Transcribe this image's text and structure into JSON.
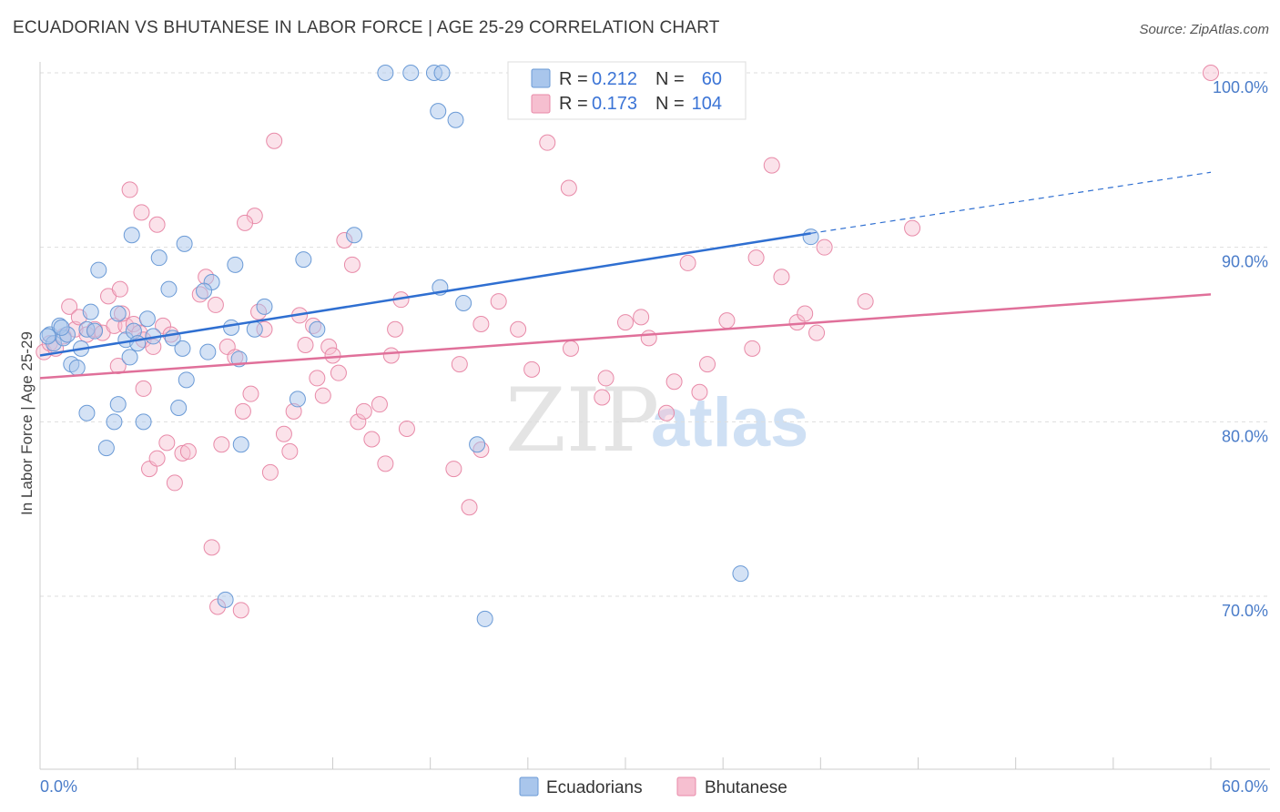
{
  "title": "ECUADORIAN VS BHUTANESE IN LABOR FORCE | AGE 25-29 CORRELATION CHART",
  "source": "Source: ZipAtlas.com",
  "watermark": {
    "part1": "ZIP",
    "part2": "atlas"
  },
  "colors": {
    "blue_fill": "#a9c6ec",
    "blue_stroke": "#6a9ad6",
    "blue_line": "#2f6fd1",
    "pink_fill": "#f6bfd0",
    "pink_stroke": "#e88aa8",
    "pink_line": "#e0709a",
    "grid": "#dddddd",
    "tick_text": "#4a7cc9"
  },
  "legend": {
    "r_label": "R =",
    "n_label": "N =",
    "series": [
      {
        "name": "Ecuadorians",
        "r": "0.212",
        "n": "60"
      },
      {
        "name": "Bhutanese",
        "r": "0.173",
        "n": "104"
      }
    ]
  },
  "chart_data": {
    "type": "scatter",
    "title": "ECUADORIAN VS BHUTANESE IN LABOR FORCE | AGE 25-29 CORRELATION CHART",
    "xlabel": "",
    "ylabel": "In Labor Force | Age 25-29",
    "xlim": [
      0,
      60
    ],
    "ylim": [
      60.5,
      101.5
    ],
    "x_tick_labels": [
      "0.0%",
      "60.0%"
    ],
    "y_ticks": [
      70,
      80,
      90,
      100
    ],
    "y_tick_labels": [
      "70.0%",
      "80.0%",
      "90.0%",
      "100.0%"
    ],
    "legend_position": "top-center",
    "series": [
      {
        "name": "Ecuadorians",
        "r": 0.212,
        "n": 60,
        "trend": {
          "x0": 0,
          "y0": 83.8,
          "x1": 39.5,
          "y1": 90.8,
          "dashed_to_x": 60,
          "dashed_to_y": 94.3
        },
        "points": [
          [
            0.5,
            85.0
          ],
          [
            0.7,
            84.5
          ],
          [
            1.0,
            85.5
          ],
          [
            1.2,
            84.8
          ],
          [
            1.4,
            85.0
          ],
          [
            1.6,
            83.3
          ],
          [
            1.9,
            83.1
          ],
          [
            2.1,
            84.2
          ],
          [
            2.4,
            85.3
          ],
          [
            2.6,
            86.3
          ],
          [
            2.8,
            85.2
          ],
          [
            3.0,
            88.7
          ],
          [
            4.0,
            86.2
          ],
          [
            4.4,
            84.7
          ],
          [
            4.6,
            83.7
          ],
          [
            4.8,
            85.2
          ],
          [
            5.0,
            84.5
          ],
          [
            5.5,
            85.9
          ],
          [
            5.8,
            84.9
          ],
          [
            6.8,
            84.8
          ],
          [
            7.3,
            84.2
          ],
          [
            7.5,
            82.4
          ],
          [
            6.6,
            87.6
          ],
          [
            6.1,
            89.4
          ],
          [
            4.7,
            90.7
          ],
          [
            5.3,
            80.0
          ],
          [
            7.1,
            80.8
          ],
          [
            4.0,
            81.0
          ],
          [
            3.8,
            80.0
          ],
          [
            3.4,
            78.5
          ],
          [
            2.4,
            80.5
          ],
          [
            8.6,
            84.0
          ],
          [
            8.8,
            88.0
          ],
          [
            7.4,
            90.2
          ],
          [
            8.4,
            87.5
          ],
          [
            9.8,
            85.4
          ],
          [
            10.2,
            83.6
          ],
          [
            11.0,
            85.3
          ],
          [
            11.5,
            86.6
          ],
          [
            13.2,
            81.3
          ],
          [
            13.5,
            89.3
          ],
          [
            17.7,
            100.0
          ],
          [
            19.0,
            100.0
          ],
          [
            20.2,
            100.0
          ],
          [
            20.6,
            100.0
          ],
          [
            20.4,
            97.8
          ],
          [
            21.3,
            97.3
          ],
          [
            16.1,
            90.7
          ],
          [
            14.2,
            85.3
          ],
          [
            10.0,
            89.0
          ],
          [
            20.5,
            87.7
          ],
          [
            21.7,
            86.8
          ],
          [
            22.4,
            78.7
          ],
          [
            10.3,
            78.7
          ],
          [
            9.5,
            69.8
          ],
          [
            22.8,
            68.7
          ],
          [
            35.9,
            71.3
          ],
          [
            39.5,
            90.6
          ],
          [
            0.4,
            84.9
          ],
          [
            1.1,
            85.4
          ]
        ]
      },
      {
        "name": "Bhutanese",
        "r": 0.173,
        "n": 104,
        "trend": {
          "x0": 0,
          "y0": 82.5,
          "x1": 60,
          "y1": 87.3
        },
        "points": [
          [
            0.2,
            84.0
          ],
          [
            0.5,
            84.5
          ],
          [
            0.8,
            84.2
          ],
          [
            1.2,
            84.9
          ],
          [
            1.5,
            86.6
          ],
          [
            1.8,
            85.3
          ],
          [
            2.0,
            86.0
          ],
          [
            2.4,
            85.0
          ],
          [
            2.8,
            85.3
          ],
          [
            3.2,
            85.1
          ],
          [
            3.5,
            87.2
          ],
          [
            3.8,
            85.5
          ],
          [
            4.1,
            87.6
          ],
          [
            4.4,
            85.5
          ],
          [
            4.8,
            85.6
          ],
          [
            5.1,
            85.1
          ],
          [
            5.3,
            84.7
          ],
          [
            5.8,
            84.3
          ],
          [
            6.3,
            85.5
          ],
          [
            6.7,
            85.0
          ],
          [
            4.6,
            93.3
          ],
          [
            5.2,
            92.0
          ],
          [
            6.0,
            91.3
          ],
          [
            4.0,
            83.2
          ],
          [
            4.2,
            86.2
          ],
          [
            5.3,
            81.9
          ],
          [
            5.6,
            77.3
          ],
          [
            6.0,
            77.9
          ],
          [
            6.5,
            78.8
          ],
          [
            6.9,
            76.5
          ],
          [
            7.3,
            78.2
          ],
          [
            7.6,
            78.3
          ],
          [
            8.2,
            87.3
          ],
          [
            8.5,
            88.3
          ],
          [
            9.0,
            86.7
          ],
          [
            9.3,
            78.7
          ],
          [
            9.6,
            84.3
          ],
          [
            10.0,
            83.7
          ],
          [
            10.4,
            80.6
          ],
          [
            10.8,
            81.6
          ],
          [
            11.2,
            86.3
          ],
          [
            11.5,
            85.3
          ],
          [
            11.8,
            77.1
          ],
          [
            12.0,
            96.1
          ],
          [
            12.5,
            79.3
          ],
          [
            12.8,
            78.3
          ],
          [
            13.0,
            80.6
          ],
          [
            13.3,
            86.1
          ],
          [
            13.6,
            84.4
          ],
          [
            14.0,
            85.5
          ],
          [
            14.2,
            82.5
          ],
          [
            14.5,
            81.5
          ],
          [
            14.8,
            84.3
          ],
          [
            15.0,
            83.8
          ],
          [
            15.3,
            82.8
          ],
          [
            15.6,
            90.4
          ],
          [
            16.0,
            89.0
          ],
          [
            16.3,
            80.0
          ],
          [
            16.6,
            80.6
          ],
          [
            17.0,
            79.0
          ],
          [
            17.4,
            81.0
          ],
          [
            17.7,
            77.6
          ],
          [
            18.0,
            83.8
          ],
          [
            18.2,
            85.3
          ],
          [
            18.5,
            87.0
          ],
          [
            18.8,
            79.6
          ],
          [
            21.2,
            77.3
          ],
          [
            21.5,
            83.3
          ],
          [
            22.0,
            75.1
          ],
          [
            22.6,
            85.6
          ],
          [
            11.0,
            91.8
          ],
          [
            10.5,
            91.4
          ],
          [
            22.6,
            78.4
          ],
          [
            24.5,
            85.3
          ],
          [
            25.2,
            83.0
          ],
          [
            27.2,
            84.2
          ],
          [
            28.8,
            81.4
          ],
          [
            30.0,
            85.7
          ],
          [
            31.2,
            84.8
          ],
          [
            32.1,
            80.5
          ],
          [
            33.2,
            89.1
          ],
          [
            33.8,
            81.7
          ],
          [
            34.2,
            83.3
          ],
          [
            35.2,
            85.8
          ],
          [
            36.5,
            84.2
          ],
          [
            36.7,
            89.4
          ],
          [
            37.5,
            94.7
          ],
          [
            38.0,
            88.3
          ],
          [
            38.8,
            85.7
          ],
          [
            39.2,
            86.2
          ],
          [
            39.8,
            85.1
          ],
          [
            40.2,
            90.0
          ],
          [
            42.3,
            86.9
          ],
          [
            44.7,
            91.1
          ],
          [
            26.0,
            96.0
          ],
          [
            27.1,
            93.4
          ],
          [
            23.5,
            86.9
          ],
          [
            29.0,
            82.5
          ],
          [
            32.5,
            82.3
          ],
          [
            30.8,
            86.0
          ],
          [
            8.8,
            72.8
          ],
          [
            9.1,
            69.4
          ],
          [
            10.3,
            69.2
          ],
          [
            60.0,
            100.0
          ]
        ]
      }
    ]
  }
}
